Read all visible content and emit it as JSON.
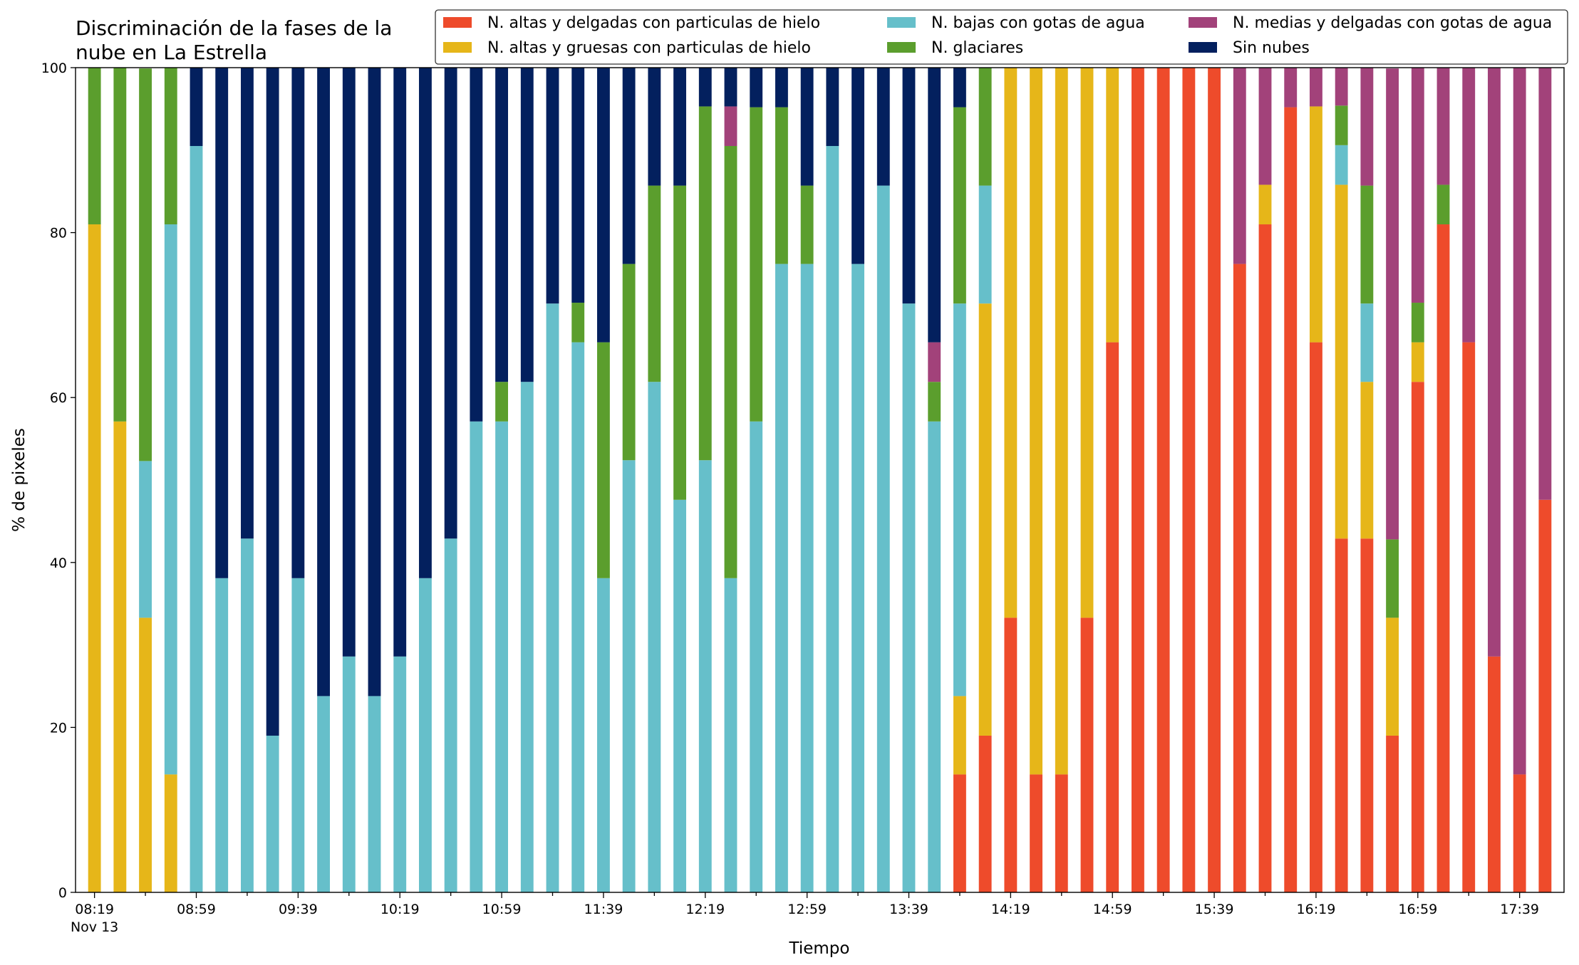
{
  "chart_data": {
    "type": "bar",
    "stacked": true,
    "title": "Discriminación de la fases de la nube en La Estrella",
    "title_lines": [
      "Discriminación de la fases de la",
      "nube en La Estrella"
    ],
    "xlabel": "Tiempo",
    "ylabel": "% de pixeles",
    "ylim": [
      0,
      100
    ],
    "yticks": [
      "0",
      "20",
      "40",
      "60",
      "80",
      "100"
    ],
    "xtick_labels": [
      "08:19",
      "08:59",
      "09:39",
      "10:19",
      "10:59",
      "11:39",
      "12:19",
      "12:59",
      "13:39",
      "14:19",
      "14:59",
      "15:39",
      "16:19",
      "16:59",
      "17:39"
    ],
    "xtick_sublabel": "Nov 13",
    "legend_position": "top-right",
    "x": [
      "08:19",
      "08:29",
      "08:39",
      "08:49",
      "08:59",
      "09:09",
      "09:19",
      "09:29",
      "09:39",
      "09:49",
      "09:59",
      "10:09",
      "10:19",
      "10:29",
      "10:39",
      "10:49",
      "10:59",
      "11:09",
      "11:19",
      "11:29",
      "11:39",
      "11:49",
      "11:59",
      "12:09",
      "12:19",
      "12:29",
      "12:39",
      "12:49",
      "12:59",
      "13:09",
      "13:19",
      "13:29",
      "13:39",
      "13:49",
      "13:59",
      "14:09",
      "14:19",
      "14:29",
      "14:39",
      "14:49",
      "14:59",
      "15:09",
      "15:19",
      "15:29",
      "15:39",
      "15:49",
      "15:59",
      "16:09",
      "16:19",
      "16:29",
      "16:39",
      "16:49",
      "16:59",
      "17:09",
      "17:19",
      "17:29",
      "17:39",
      "17:49"
    ],
    "series": [
      {
        "name": "N. altas y delgadas con particulas de hielo",
        "color": "#EE4B2B",
        "values": [
          0,
          0,
          0,
          0,
          0,
          0,
          0,
          0,
          0,
          0,
          0,
          0,
          0,
          0,
          0,
          0,
          0,
          0,
          0,
          0,
          0,
          0,
          0,
          0,
          0,
          0,
          0,
          0,
          0,
          0,
          0,
          0,
          0,
          0,
          14.3,
          19.0,
          33.3,
          14.3,
          14.3,
          33.3,
          66.7,
          100,
          100,
          100,
          100,
          76.2,
          81.0,
          95.2,
          66.7,
          42.9,
          42.9,
          19.0,
          61.9,
          81.0,
          66.7,
          28.6,
          14.3,
          47.6
        ]
      },
      {
        "name": "N. altas y gruesas con particulas de hielo",
        "color": "#E6B619",
        "values": [
          81.0,
          57.1,
          33.3,
          14.3,
          0,
          0,
          0,
          0,
          0,
          0,
          0,
          0,
          0,
          0,
          0,
          0,
          0,
          0,
          0,
          0,
          0,
          0,
          0,
          0,
          0,
          0,
          0,
          0,
          0,
          0,
          0,
          0,
          0,
          0,
          9.5,
          52.4,
          66.7,
          85.7,
          85.7,
          66.7,
          33.3,
          0,
          0,
          0,
          0,
          0,
          4.8,
          0,
          28.6,
          42.9,
          19.0,
          14.3,
          4.8,
          0,
          0,
          0,
          0,
          0
        ]
      },
      {
        "name": "N. bajas con gotas de agua",
        "color": "#66BFCA",
        "values": [
          0,
          0,
          19.0,
          66.7,
          90.5,
          38.1,
          42.9,
          19.0,
          38.1,
          23.8,
          28.6,
          23.8,
          28.6,
          38.1,
          42.9,
          57.1,
          57.1,
          61.9,
          71.4,
          66.7,
          38.1,
          52.4,
          61.9,
          47.6,
          52.4,
          38.1,
          57.1,
          76.2,
          76.2,
          90.5,
          76.2,
          85.7,
          71.4,
          57.1,
          47.6,
          14.3,
          0,
          0,
          0,
          0,
          0,
          0,
          0,
          0,
          0,
          0,
          0,
          0,
          0,
          4.8,
          9.5,
          0,
          0,
          0,
          0,
          0,
          0,
          0
        ]
      },
      {
        "name": "N. glaciares",
        "color": "#5B9E2D",
        "values": [
          19.0,
          42.9,
          47.6,
          19.0,
          0,
          0,
          0,
          0,
          0,
          0,
          0,
          0,
          0,
          0,
          0,
          0,
          4.8,
          0,
          0,
          4.8,
          28.6,
          23.8,
          23.8,
          38.1,
          42.9,
          52.4,
          38.1,
          19.0,
          9.5,
          0,
          0,
          0,
          0,
          4.8,
          23.8,
          14.3,
          0,
          0,
          0,
          0,
          0,
          0,
          0,
          0,
          0,
          0,
          0,
          0,
          0,
          4.8,
          14.3,
          9.5,
          4.8,
          4.8,
          0,
          0,
          0,
          0
        ]
      },
      {
        "name": "N. medias y delgadas con gotas de agua",
        "color": "#A2427A",
        "values": [
          0,
          0,
          0,
          0,
          0,
          0,
          0,
          0,
          0,
          0,
          0,
          0,
          0,
          0,
          0,
          0,
          0,
          0,
          0,
          0,
          0,
          0,
          0,
          0,
          0,
          4.8,
          0,
          0,
          0,
          0,
          0,
          0,
          0,
          4.8,
          0,
          0,
          0,
          0,
          0,
          0,
          0,
          0,
          0,
          0,
          0,
          23.8,
          14.3,
          4.8,
          4.8,
          4.8,
          14.3,
          57.1,
          28.6,
          14.3,
          33.3,
          71.4,
          85.7,
          52.4
        ]
      },
      {
        "name": "Sin nubes",
        "color": "#03205E",
        "values": [
          0,
          0,
          0,
          0,
          9.5,
          61.9,
          57.1,
          81.0,
          61.9,
          76.2,
          71.4,
          76.2,
          71.4,
          61.9,
          57.1,
          42.9,
          38.1,
          38.1,
          28.6,
          28.6,
          33.3,
          23.8,
          14.3,
          14.3,
          4.8,
          4.8,
          4.8,
          4.8,
          14.3,
          9.5,
          23.8,
          14.3,
          28.6,
          33.3,
          4.8,
          0,
          0,
          0,
          0,
          0,
          0,
          0,
          0,
          0,
          0,
          0,
          0,
          0,
          0,
          0,
          0,
          0,
          0,
          0,
          0,
          0,
          0,
          0
        ]
      }
    ],
    "legend_order": [
      0,
      1,
      2,
      3,
      4,
      5
    ]
  }
}
